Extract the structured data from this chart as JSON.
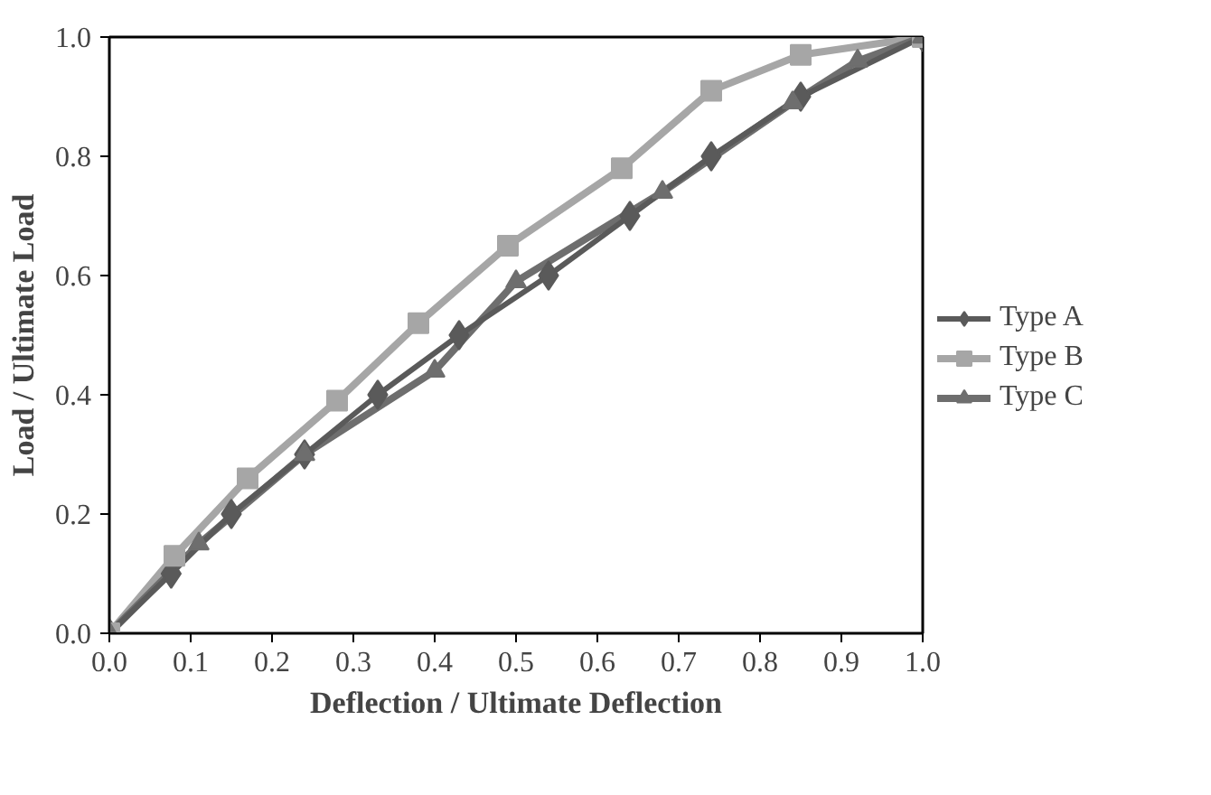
{
  "chart_data": {
    "type": "line",
    "xlabel": "Deflection / Ultimate Deflection",
    "ylabel": "Load / Ultimate Load",
    "xlim": [
      0,
      1
    ],
    "ylim": [
      0,
      1
    ],
    "xticks": [
      {
        "value": 0,
        "label": "0.0"
      },
      {
        "value": 0.1,
        "label": "0.1"
      },
      {
        "value": 0.2,
        "label": "0.2"
      },
      {
        "value": 0.3,
        "label": "0.3"
      },
      {
        "value": 0.4,
        "label": "0.4"
      },
      {
        "value": 0.5,
        "label": "0.5"
      },
      {
        "value": 0.6,
        "label": "0.6"
      },
      {
        "value": 0.7,
        "label": "0.7"
      },
      {
        "value": 0.8,
        "label": "0.8"
      },
      {
        "value": 0.9,
        "label": "0.9"
      },
      {
        "value": 1,
        "label": "1.0"
      }
    ],
    "yticks": [
      {
        "value": 0,
        "label": "0.0"
      },
      {
        "value": 0.2,
        "label": "0.2"
      },
      {
        "value": 0.4,
        "label": "0.4"
      },
      {
        "value": 0.6,
        "label": "0.6"
      },
      {
        "value": 0.8,
        "label": "0.8"
      },
      {
        "value": 1,
        "label": "1.0"
      }
    ],
    "grid": false,
    "legend": "right",
    "series": [
      {
        "name": "Type A",
        "color": "#5a5a5a",
        "marker": "diamond",
        "x": [
          0,
          0.076,
          0.15,
          0.24,
          0.33,
          0.43,
          0.54,
          0.64,
          0.74,
          0.85,
          1
        ],
        "values": [
          0,
          0.1,
          0.2,
          0.3,
          0.4,
          0.5,
          0.6,
          0.7,
          0.8,
          0.9,
          1
        ]
      },
      {
        "name": "Type B",
        "color": "#a6a6a6",
        "marker": "square",
        "x": [
          0,
          0.08,
          0.17,
          0.28,
          0.38,
          0.49,
          0.63,
          0.74,
          0.85,
          1
        ],
        "values": [
          0,
          0.13,
          0.26,
          0.39,
          0.52,
          0.65,
          0.78,
          0.91,
          0.97,
          1
        ]
      },
      {
        "name": "Type C",
        "color": "#6e6e6e",
        "marker": "triangle",
        "x": [
          0,
          0.11,
          0.24,
          0.4,
          0.5,
          0.68,
          0.84,
          0.92,
          1
        ],
        "values": [
          0,
          0.15,
          0.3,
          0.44,
          0.59,
          0.74,
          0.89,
          0.96,
          1
        ]
      }
    ]
  }
}
